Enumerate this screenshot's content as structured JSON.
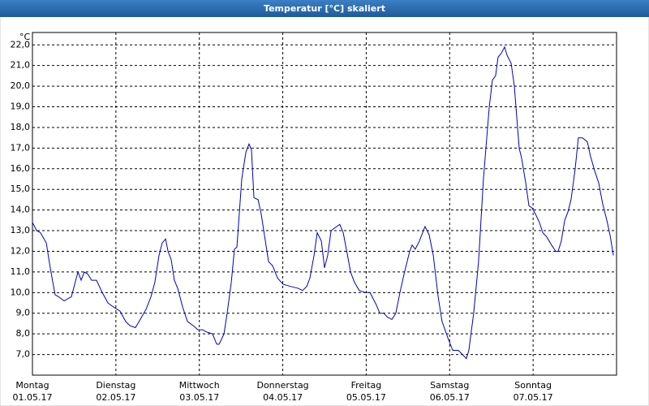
{
  "chart_data": {
    "type": "line",
    "title": "Temperatur [°C] skaliert",
    "y_unit": "°C",
    "xlim": [
      0,
      168
    ],
    "ylim": [
      6.0,
      22.6
    ],
    "grid": true,
    "xticks": [
      {
        "value": 0,
        "label": "Montag",
        "date": "01.05.17"
      },
      {
        "value": 24,
        "label": "Dienstag",
        "date": "02.05.17"
      },
      {
        "value": 48,
        "label": "Mittwoch",
        "date": "03.05.17"
      },
      {
        "value": 72,
        "label": "Donnerstag",
        "date": "04.05.17"
      },
      {
        "value": 96,
        "label": "Freitag",
        "date": "05.05.17"
      },
      {
        "value": 120,
        "label": "Samstag",
        "date": "06.05.17"
      },
      {
        "value": 144,
        "label": "Sonntag",
        "date": "07.05.17"
      }
    ],
    "yticks": [
      {
        "value": 7,
        "label": "7,0"
      },
      {
        "value": 8,
        "label": "8,0"
      },
      {
        "value": 9,
        "label": "9,0"
      },
      {
        "value": 10,
        "label": "10,0"
      },
      {
        "value": 11,
        "label": "11,0"
      },
      {
        "value": 12,
        "label": "12,0"
      },
      {
        "value": 13,
        "label": "13,0"
      },
      {
        "value": 14,
        "label": "14,0"
      },
      {
        "value": 15,
        "label": "15,0"
      },
      {
        "value": 16,
        "label": "16,0"
      },
      {
        "value": 17,
        "label": "17,0"
      },
      {
        "value": 18,
        "label": "18,0"
      },
      {
        "value": 19,
        "label": "19,0"
      },
      {
        "value": 20,
        "label": "20,0"
      },
      {
        "value": 21,
        "label": "21,0"
      },
      {
        "value": 22,
        "label": "22,0"
      }
    ],
    "series": [
      {
        "color": "#0000c0",
        "x": [
          0,
          1.2,
          2.3,
          4.0,
          5.1,
          6.5,
          7.5,
          9.1,
          11.2,
          13.1,
          14.0,
          14.9,
          15.9,
          17.0,
          18.4,
          20.1,
          21.7,
          23.3,
          25.2,
          26.8,
          28.0,
          29.6,
          31.0,
          32.7,
          34.1,
          35.2,
          36.4,
          37.3,
          38.3,
          39.0,
          39.9,
          40.8,
          41.8,
          43.2,
          44.6,
          46.2,
          47.6,
          49.0,
          49.9,
          51.8,
          53.0,
          53.7,
          55.1,
          56.0,
          57.2,
          58.1,
          58.8,
          60.2,
          61.4,
          62.3,
          63.0,
          63.7,
          64.9,
          65.8,
          67.0,
          67.9,
          69.1,
          70.5,
          72.1,
          74.2,
          76.5,
          77.7,
          78.9,
          79.8,
          81.0,
          81.9,
          83.1,
          84.0,
          84.9,
          85.9,
          87.5,
          88.4,
          89.4,
          90.5,
          91.5,
          92.6,
          94.0,
          95.7,
          97.1,
          98.0,
          98.9,
          99.9,
          101.0,
          102.2,
          103.4,
          104.5,
          105.7,
          106.9,
          108.5,
          109.2,
          110.1,
          111.3,
          112.9,
          114.1,
          115.3,
          116.7,
          117.8,
          119.5,
          120.9,
          122.5,
          123.7,
          124.8,
          125.5,
          126.9,
          128.3,
          129.7,
          131.4,
          132.3,
          133.2,
          133.9,
          134.9,
          135.8,
          136.5,
          137.7,
          138.6,
          140.0,
          140.7,
          141.9,
          142.8,
          143.7,
          144.7,
          145.8,
          146.8,
          147.9,
          149.3,
          150.5,
          151.2,
          152.1,
          153.1,
          154.0,
          154.9,
          156.1,
          157.0,
          158.2,
          159.6,
          160.5,
          161.7,
          162.9,
          164.0,
          165.2,
          166.1,
          167.1
        ],
        "values": [
          13.4,
          13.0,
          12.9,
          12.4,
          11.2,
          9.9,
          9.8,
          9.6,
          9.8,
          11.0,
          10.6,
          11.0,
          10.9,
          10.6,
          10.6,
          10.0,
          9.5,
          9.3,
          9.1,
          8.6,
          8.4,
          8.3,
          8.7,
          9.2,
          9.8,
          10.5,
          11.8,
          12.4,
          12.6,
          12.0,
          11.6,
          10.6,
          10.2,
          9.3,
          8.6,
          8.4,
          8.2,
          8.2,
          8.1,
          8.0,
          7.5,
          7.5,
          8.0,
          9.0,
          10.5,
          12.1,
          12.2,
          15.5,
          16.8,
          17.2,
          16.9,
          14.6,
          14.5,
          13.8,
          12.5,
          11.5,
          11.3,
          10.7,
          10.4,
          10.3,
          10.2,
          10.1,
          10.3,
          10.7,
          11.8,
          12.9,
          12.5,
          11.2,
          11.8,
          13.0,
          13.2,
          13.3,
          12.9,
          11.9,
          11.0,
          10.5,
          10.1,
          10.0,
          10.0,
          9.7,
          9.4,
          9.0,
          9.0,
          8.8,
          8.7,
          9.0,
          10.0,
          10.9,
          12.0,
          12.3,
          12.1,
          12.5,
          13.2,
          12.8,
          11.8,
          9.8,
          8.6,
          7.8,
          7.2,
          7.2,
          7.0,
          6.8,
          7.2,
          9.0,
          11.5,
          15.5,
          19.0,
          20.3,
          20.5,
          21.4,
          21.6,
          21.9,
          21.5,
          21.1,
          20.0,
          17.0,
          16.5,
          15.3,
          14.2,
          14.1,
          13.8,
          13.4,
          12.9,
          12.7,
          12.3,
          12.0,
          12.0,
          12.5,
          13.5,
          13.9,
          14.5,
          16.0,
          17.5,
          17.5,
          17.3,
          16.6,
          15.9,
          15.3,
          14.3,
          13.5,
          12.8,
          11.8
        ]
      }
    ]
  }
}
